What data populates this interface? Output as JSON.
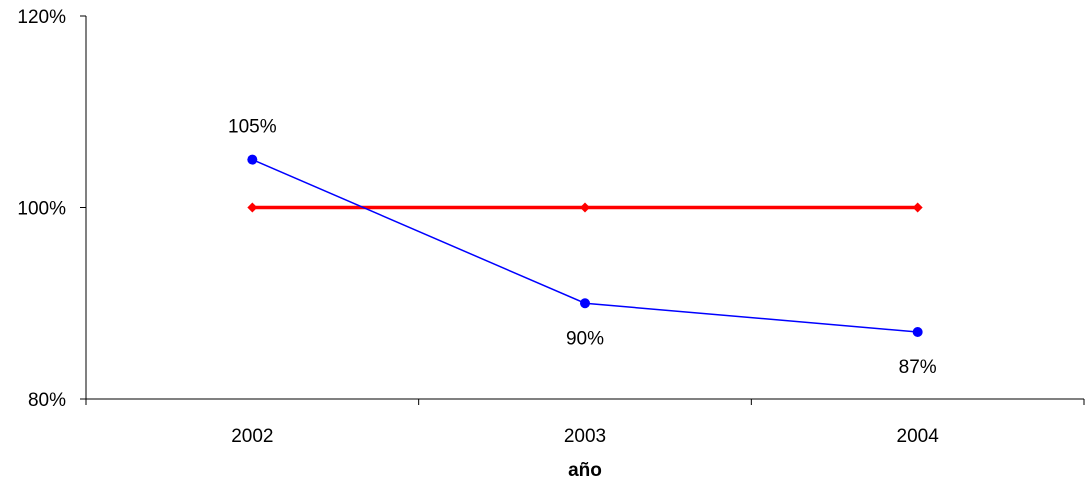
{
  "chart_data": {
    "type": "line",
    "categories": [
      "2002",
      "2003",
      "2004"
    ],
    "xlabel": "año",
    "ylabel": "",
    "ylim": [
      80,
      120
    ],
    "yticks": [
      80,
      100,
      120
    ],
    "ytick_labels": [
      "80%",
      "100%",
      "120%"
    ],
    "grid": false,
    "series": [
      {
        "values": [
          105,
          90,
          87
        ],
        "data_labels": [
          "105%",
          "90%",
          "87%"
        ],
        "color": "#0000ff",
        "marker": "circle"
      },
      {
        "values": [
          100,
          100,
          100
        ],
        "color": "#ff0000",
        "marker": "diamond"
      }
    ]
  }
}
